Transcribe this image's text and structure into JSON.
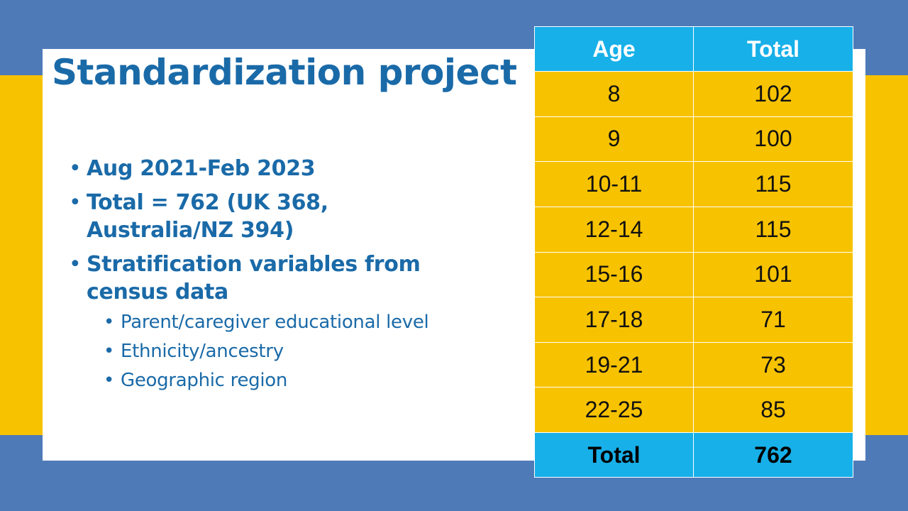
{
  "slide": {
    "title": "Standardization project"
  },
  "bullets": [
    {
      "text": "Aug 2021-Feb 2023"
    },
    {
      "text": "Total = 762 (UK 368, Australia/NZ 394)"
    },
    {
      "text": "Stratification variables from census data",
      "sub": [
        {
          "text": "Parent/caregiver educational level"
        },
        {
          "text": "Ethnicity/ancestry"
        },
        {
          "text": "Geographic region"
        }
      ]
    }
  ],
  "table": {
    "headers": [
      "Age",
      "Total"
    ],
    "rows": [
      {
        "age": "8",
        "total": "102"
      },
      {
        "age": "9",
        "total": "100"
      },
      {
        "age": "10-11",
        "total": "115"
      },
      {
        "age": "12-14",
        "total": "115"
      },
      {
        "age": "15-16",
        "total": "101"
      },
      {
        "age": "17-18",
        "total": "71"
      },
      {
        "age": "19-21",
        "total": "73"
      },
      {
        "age": "22-25",
        "total": "85"
      }
    ],
    "footer": {
      "age": "Total",
      "total": "762"
    }
  },
  "colors": {
    "background_blue": "#4f7ab8",
    "band_yellow": "#f7c200",
    "title_blue": "#1a6aa8",
    "header_cyan": "#17b0e9"
  }
}
